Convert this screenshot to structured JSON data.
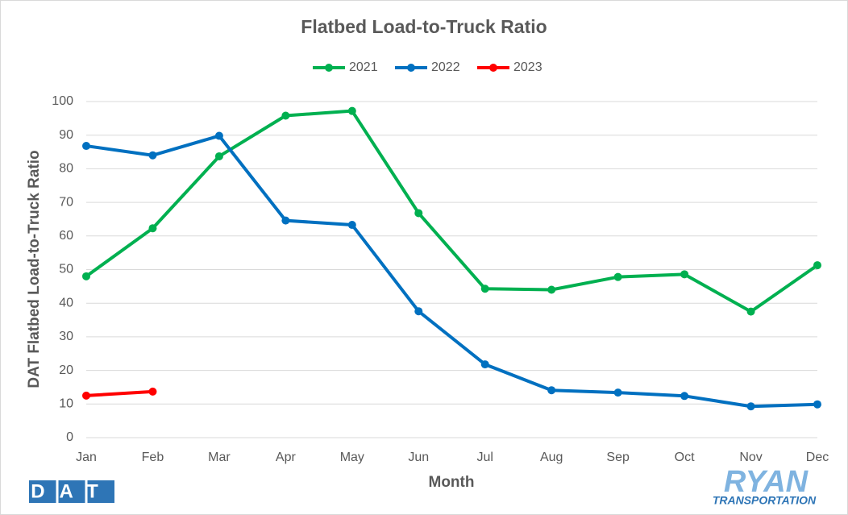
{
  "chart_data": {
    "type": "line",
    "title": "Flatbed Load-to-Truck Ratio",
    "x_label": "Month",
    "y_label": "DAT Flatbed Load-to-Truck Ratio",
    "categories": [
      "Jan",
      "Feb",
      "Mar",
      "Apr",
      "May",
      "Jun",
      "Jul",
      "Aug",
      "Sep",
      "Oct",
      "Nov",
      "Dec"
    ],
    "series": [
      {
        "name": "2021",
        "color": "#00b050",
        "values": [
          48,
          62.3,
          83.7,
          95.8,
          97.2,
          66.8,
          44.3,
          44,
          47.8,
          48.6,
          37.5,
          51.3
        ]
      },
      {
        "name": "2022",
        "color": "#0070c0",
        "values": [
          86.8,
          84,
          89.8,
          64.6,
          63.3,
          37.6,
          21.8,
          14.1,
          13.4,
          12.4,
          9.3,
          9.9
        ]
      },
      {
        "name": "2023",
        "color": "#ff0000",
        "values": [
          12.5,
          13.7,
          null,
          null,
          null,
          null,
          null,
          null,
          null,
          null,
          null,
          null
        ]
      }
    ],
    "ylim": [
      0,
      100
    ],
    "yticks": [
      0,
      10,
      20,
      30,
      40,
      50,
      60,
      70,
      80,
      90,
      100
    ],
    "grid": true,
    "legend": "top"
  },
  "logos": {
    "left": "DAT",
    "right": "RYAN",
    "right_sub": "TRANSPORTATION"
  }
}
